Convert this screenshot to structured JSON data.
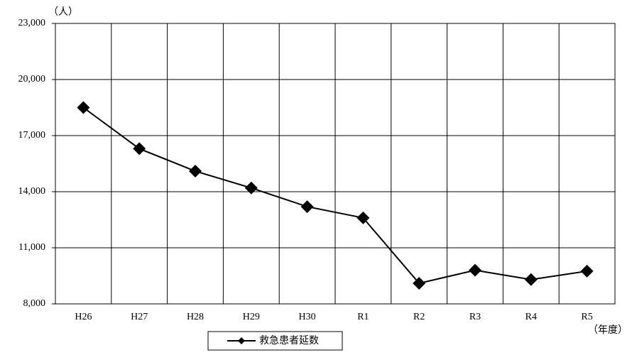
{
  "chart_data": {
    "type": "line",
    "y_unit": "（人）",
    "x_unit": "（年度）",
    "categories": [
      "H26",
      "H27",
      "H28",
      "H29",
      "H30",
      "R1",
      "R2",
      "R3",
      "R4",
      "R5"
    ],
    "series": [
      {
        "name": "救急患者延数",
        "color": "#000000",
        "values": [
          18500,
          16300,
          15100,
          14200,
          13200,
          12600,
          9100,
          9800,
          9300,
          9750
        ]
      }
    ],
    "ylim": [
      8000,
      23000
    ],
    "yticks": [
      {
        "value": 8000,
        "label": "8,000"
      },
      {
        "value": 11000,
        "label": "11,000"
      },
      {
        "value": 14000,
        "label": "14,000"
      },
      {
        "value": 17000,
        "label": "17,000"
      },
      {
        "value": 20000,
        "label": "20,000"
      },
      {
        "value": 23000,
        "label": "23,000"
      }
    ],
    "grid": true,
    "legend": "bottom"
  }
}
